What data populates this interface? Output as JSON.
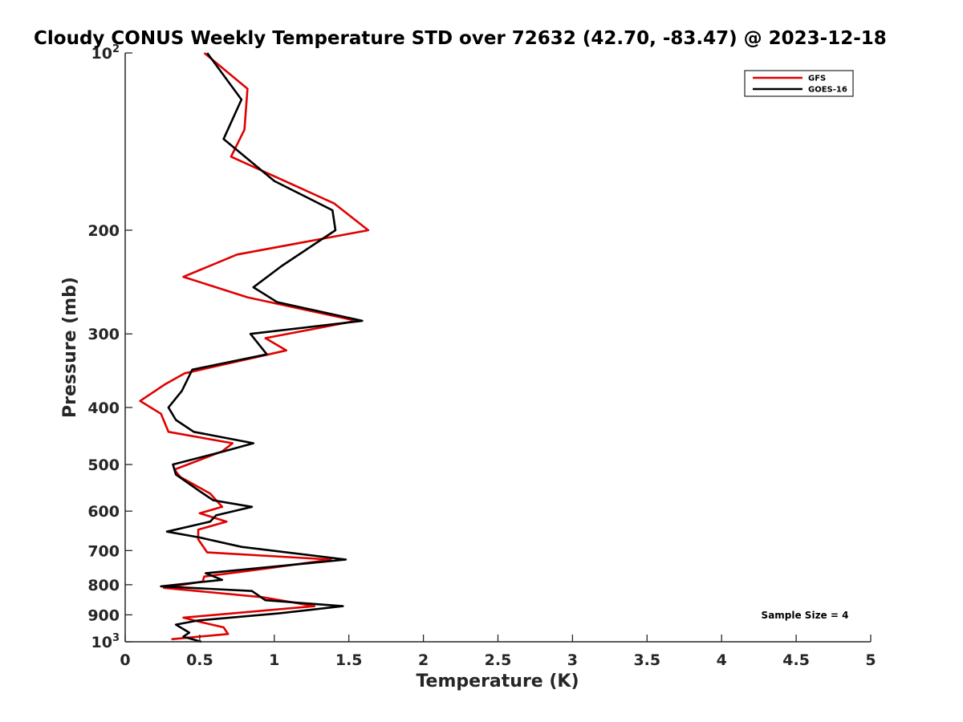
{
  "chart_data": {
    "type": "line",
    "title": "Cloudy CONUS Weekly Temperature STD over 72632 (42.70, -83.47) @ 2023-12-18",
    "xlabel": "Temperature (K)",
    "ylabel": "Pressure (mb)",
    "xlim": [
      0,
      5
    ],
    "ylim": [
      1000,
      100
    ],
    "y_scale": "log",
    "y_reversed": true,
    "grid": false,
    "legend_position": "top-right",
    "x_ticks": [
      "0",
      "0.5",
      "1",
      "1.5",
      "2",
      "2.5",
      "3",
      "3.5",
      "4",
      "4.5",
      "5"
    ],
    "y_ticks": [
      {
        "value": 100,
        "base": "10",
        "exp": "2"
      },
      {
        "value": 200,
        "label": "200"
      },
      {
        "value": 300,
        "label": "300"
      },
      {
        "value": 400,
        "label": "400"
      },
      {
        "value": 500,
        "label": "500"
      },
      {
        "value": 600,
        "label": "600"
      },
      {
        "value": 700,
        "label": "700"
      },
      {
        "value": 800,
        "label": "800"
      },
      {
        "value": 900,
        "label": "900"
      },
      {
        "value": 1000,
        "base": "10",
        "exp": "3"
      }
    ],
    "annotation": "Sample Size = 4",
    "series": [
      {
        "name": "GFS",
        "color": "#e00000",
        "points": [
          [
            0.53,
            100
          ],
          [
            0.82,
            115
          ],
          [
            0.8,
            135
          ],
          [
            0.71,
            150
          ],
          [
            1.4,
            180
          ],
          [
            1.63,
            200
          ],
          [
            0.75,
            220
          ],
          [
            0.39,
            240
          ],
          [
            0.82,
            260
          ],
          [
            1.55,
            285
          ],
          [
            0.94,
            305
          ],
          [
            1.08,
            320
          ],
          [
            0.4,
            350
          ],
          [
            0.27,
            365
          ],
          [
            0.1,
            390
          ],
          [
            0.24,
            410
          ],
          [
            0.29,
            440
          ],
          [
            0.72,
            460
          ],
          [
            0.65,
            475
          ],
          [
            0.33,
            510
          ],
          [
            0.37,
            525
          ],
          [
            0.57,
            560
          ],
          [
            0.65,
            590
          ],
          [
            0.5,
            605
          ],
          [
            0.68,
            625
          ],
          [
            0.49,
            645
          ],
          [
            0.49,
            670
          ],
          [
            0.55,
            705
          ],
          [
            1.38,
            725
          ],
          [
            0.96,
            750
          ],
          [
            0.53,
            775
          ],
          [
            0.52,
            790
          ],
          [
            0.26,
            810
          ],
          [
            0.92,
            840
          ],
          [
            1.27,
            870
          ],
          [
            0.39,
            910
          ],
          [
            0.5,
            925
          ],
          [
            0.66,
            945
          ],
          [
            0.69,
            970
          ],
          [
            0.31,
            990
          ]
        ]
      },
      {
        "name": "GOES-16",
        "color": "#000000",
        "points": [
          [
            0.55,
            100
          ],
          [
            0.78,
            120
          ],
          [
            0.66,
            140
          ],
          [
            1.0,
            165
          ],
          [
            1.39,
            185
          ],
          [
            1.41,
            200
          ],
          [
            1.05,
            230
          ],
          [
            0.86,
            250
          ],
          [
            1.02,
            265
          ],
          [
            1.59,
            285
          ],
          [
            0.84,
            300
          ],
          [
            0.95,
            325
          ],
          [
            0.45,
            345
          ],
          [
            0.38,
            375
          ],
          [
            0.29,
            400
          ],
          [
            0.34,
            420
          ],
          [
            0.46,
            440
          ],
          [
            0.86,
            460
          ],
          [
            0.66,
            475
          ],
          [
            0.32,
            500
          ],
          [
            0.34,
            520
          ],
          [
            0.5,
            555
          ],
          [
            0.59,
            575
          ],
          [
            0.85,
            590
          ],
          [
            0.61,
            610
          ],
          [
            0.57,
            625
          ],
          [
            0.28,
            650
          ],
          [
            0.5,
            665
          ],
          [
            0.78,
            690
          ],
          [
            1.48,
            725
          ],
          [
            0.54,
            765
          ],
          [
            0.65,
            785
          ],
          [
            0.24,
            805
          ],
          [
            0.85,
            820
          ],
          [
            0.94,
            850
          ],
          [
            1.46,
            870
          ],
          [
            1.03,
            895
          ],
          [
            0.49,
            920
          ],
          [
            0.34,
            935
          ],
          [
            0.43,
            965
          ],
          [
            0.39,
            980
          ],
          [
            0.51,
            1000
          ]
        ]
      }
    ]
  }
}
